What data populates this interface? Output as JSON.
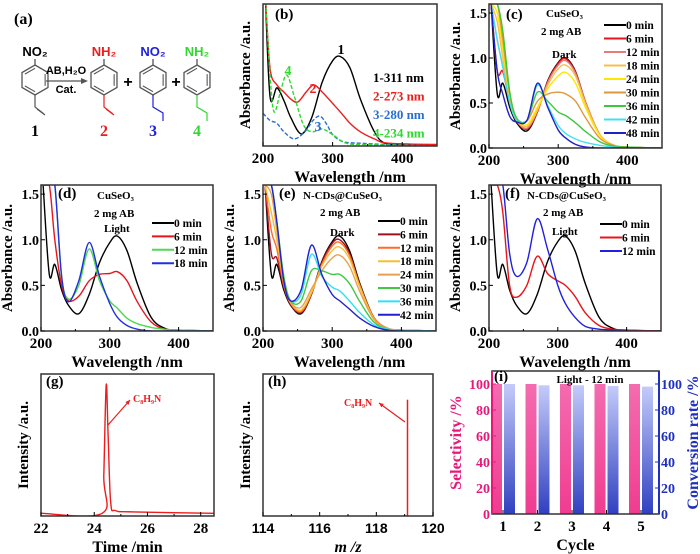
{
  "scheme": {
    "panel_label": "(a)",
    "reagent_top": "AB,H₂O",
    "reagent_bottom": "Cat.",
    "plus": "+",
    "compounds": [
      {
        "number": "1",
        "group": "NO₂",
        "tail": "vinyl",
        "color": "#000000"
      },
      {
        "number": "2",
        "group": "NH₂",
        "tail": "vinyl",
        "color": "#ee1c1c"
      },
      {
        "number": "3",
        "group": "NO₂",
        "tail": "ethyl",
        "color": "#2020e0"
      },
      {
        "number": "4",
        "group": "NH₂",
        "tail": "ethyl",
        "color": "#30d830"
      }
    ]
  },
  "chart_data": [
    {
      "panel_label": "(b)",
      "type": "line",
      "xlabel": "Wavelength /nm",
      "ylabel": "Absorbance /a.u.",
      "xlim": [
        200,
        450
      ],
      "ylim": [
        0,
        1
      ],
      "x_ticks": [
        200,
        300,
        400
      ],
      "y_ticks": [],
      "legend_placement": "right",
      "series": [
        {
          "name": "1-311 nm",
          "label": "1",
          "color": "#000000",
          "dashed": false,
          "x": [
            203,
            210,
            220,
            230,
            240,
            255,
            270,
            285,
            300,
            311,
            325,
            340,
            360,
            375,
            400,
            450
          ],
          "y": [
            1.1,
            0.35,
            0.41,
            0.32,
            0.2,
            0.085,
            0.2,
            0.45,
            0.6,
            0.63,
            0.55,
            0.33,
            0.1,
            0.02,
            0.01,
            0.01
          ]
        },
        {
          "name": "2-273 nm",
          "label": "2",
          "color": "#ee1c1c",
          "dashed": false,
          "x": [
            203,
            210,
            220,
            230,
            240,
            250,
            262,
            273,
            285,
            300,
            311,
            325,
            340,
            360,
            380,
            450
          ],
          "y": [
            1.1,
            0.55,
            0.43,
            0.38,
            0.33,
            0.31,
            0.38,
            0.43,
            0.38,
            0.3,
            0.24,
            0.16,
            0.1,
            0.05,
            0.02,
            0.01
          ]
        },
        {
          "name": "3-280 nm",
          "label": "3",
          "color": "#2a6fd0",
          "dashed": true,
          "x": [
            200,
            210,
            220,
            230,
            245,
            260,
            272,
            282,
            292,
            300,
            315,
            340,
            380,
            450
          ],
          "y": [
            0.23,
            0.18,
            0.16,
            0.1,
            0.05,
            0.1,
            0.18,
            0.21,
            0.15,
            0.08,
            0.03,
            0.02,
            0.01,
            0
          ]
        },
        {
          "name": "4-234 nm",
          "label": "4",
          "color": "#30d830",
          "dashed": true,
          "x": [
            203,
            210,
            216,
            225,
            234,
            245,
            258,
            270,
            285,
            300,
            320,
            350,
            450
          ],
          "y": [
            1.1,
            0.5,
            0.24,
            0.38,
            0.5,
            0.35,
            0.15,
            0.1,
            0.12,
            0.08,
            0.02,
            0.01,
            0
          ]
        }
      ]
    },
    {
      "panel_label": "(c)",
      "type": "line",
      "xlabel": "Wavelength /nm",
      "ylabel": "Absorbance /a.u.",
      "xlim": [
        200,
        450
      ],
      "ylim": [
        0,
        1.6
      ],
      "x_ticks": [
        200,
        300,
        400
      ],
      "y_ticks": [
        0.0,
        0.5,
        1.0,
        1.5
      ],
      "annotations": [
        "CuSeO₃",
        "2 mg AB",
        "Dark"
      ],
      "legend_placement": "right",
      "x": [
        203,
        212,
        220,
        230,
        240,
        255,
        270,
        285,
        300,
        311,
        325,
        340,
        360,
        380,
        400,
        450
      ],
      "series": [
        {
          "name": "0 min",
          "color": "#000000",
          "y": [
            1.6,
            0.6,
            0.72,
            0.45,
            0.28,
            0.19,
            0.4,
            0.75,
            0.95,
            1.0,
            0.85,
            0.5,
            0.15,
            0.03,
            0.01,
            0
          ]
        },
        {
          "name": "6 min",
          "color": "#e8141b",
          "y": [
            1.6,
            0.85,
            0.85,
            0.5,
            0.3,
            0.21,
            0.4,
            0.74,
            0.94,
            0.99,
            0.84,
            0.5,
            0.15,
            0.03,
            0.01,
            0
          ]
        },
        {
          "name": "12 min",
          "color": "#e87a7a",
          "y": [
            1.6,
            1.2,
            0.9,
            0.5,
            0.3,
            0.22,
            0.41,
            0.73,
            0.92,
            0.97,
            0.83,
            0.5,
            0.15,
            0.03,
            0.01,
            0
          ]
        },
        {
          "name": "18 min",
          "color": "#f5c04a",
          "y": [
            1.6,
            1.4,
            1.0,
            0.55,
            0.31,
            0.24,
            0.42,
            0.7,
            0.88,
            0.92,
            0.8,
            0.48,
            0.15,
            0.03,
            0.01,
            0
          ]
        },
        {
          "name": "24 min",
          "color": "#ffe600",
          "y": [
            1.6,
            1.5,
            1.1,
            0.58,
            0.32,
            0.26,
            0.45,
            0.66,
            0.8,
            0.84,
            0.72,
            0.44,
            0.14,
            0.03,
            0.01,
            0
          ]
        },
        {
          "name": "30 min",
          "color": "#e0963c",
          "y": [
            1.6,
            1.6,
            1.2,
            0.6,
            0.33,
            0.3,
            0.52,
            0.6,
            0.62,
            0.6,
            0.52,
            0.33,
            0.11,
            0.03,
            0.01,
            0
          ]
        },
        {
          "name": "36 min",
          "color": "#3cc83c",
          "y": [
            1.6,
            1.6,
            1.3,
            0.62,
            0.33,
            0.31,
            0.62,
            0.52,
            0.4,
            0.36,
            0.28,
            0.18,
            0.07,
            0.02,
            0.01,
            0
          ]
        },
        {
          "name": "42 min",
          "color": "#40e0f0",
          "y": [
            1.6,
            1.2,
            0.9,
            0.5,
            0.31,
            0.31,
            0.7,
            0.47,
            0.25,
            0.16,
            0.1,
            0.06,
            0.03,
            0.01,
            0,
            0
          ]
        },
        {
          "name": "48 min",
          "color": "#2020c8",
          "y": [
            1.6,
            0.85,
            0.6,
            0.35,
            0.29,
            0.31,
            0.72,
            0.45,
            0.2,
            0.11,
            0.04,
            0.01,
            0,
            0,
            0,
            0
          ]
        }
      ]
    },
    {
      "panel_label": "(d)",
      "type": "line",
      "xlabel": "Wavelength /nm",
      "ylabel": "Absorbance /a.u.",
      "xlim": [
        200,
        450
      ],
      "ylim": [
        0,
        1.6
      ],
      "x_ticks": [
        200,
        300,
        400
      ],
      "y_ticks": [
        0.0,
        0.5,
        1.0,
        1.5
      ],
      "annotations": [
        "CuSeO₃",
        "2 mg AB",
        "Light"
      ],
      "legend_placement": "right",
      "x": [
        203,
        212,
        220,
        230,
        240,
        255,
        270,
        285,
        300,
        311,
        325,
        340,
        360,
        380,
        400,
        450
      ],
      "series": [
        {
          "name": "0 min",
          "color": "#000000",
          "y": [
            1.6,
            0.62,
            0.73,
            0.45,
            0.28,
            0.19,
            0.4,
            0.75,
            0.97,
            1.04,
            0.88,
            0.52,
            0.15,
            0.03,
            0.01,
            0
          ]
        },
        {
          "name": "6 min",
          "color": "#e8141b",
          "y": [
            1.6,
            1.6,
            1.0,
            0.5,
            0.33,
            0.38,
            0.55,
            0.62,
            0.63,
            0.65,
            0.55,
            0.32,
            0.1,
            0.02,
            0.01,
            0
          ]
        },
        {
          "name": "12 min",
          "color": "#50d850",
          "y": [
            1.6,
            1.6,
            1.6,
            0.6,
            0.35,
            0.5,
            0.9,
            0.55,
            0.33,
            0.25,
            0.14,
            0.08,
            0.04,
            0.02,
            0.01,
            0
          ]
        },
        {
          "name": "18 min",
          "color": "#2030e0",
          "y": [
            1.6,
            1.6,
            1.6,
            0.6,
            0.32,
            0.55,
            0.97,
            0.6,
            0.3,
            0.15,
            0.06,
            0.02,
            0,
            0,
            0,
            0
          ]
        }
      ]
    },
    {
      "panel_label": "(e)",
      "type": "line",
      "xlabel": "Wavelength /nm",
      "ylabel": "Absorbance /a.u.",
      "xlim": [
        200,
        450
      ],
      "ylim": [
        0,
        1.6
      ],
      "x_ticks": [
        200,
        300,
        400
      ],
      "y_ticks": [
        0.0,
        0.5,
        1.0,
        1.5
      ],
      "annotations": [
        "N-CDs@CuSeO₃",
        "2 mg AB",
        "Dark"
      ],
      "legend_placement": "right",
      "x": [
        203,
        212,
        220,
        230,
        240,
        255,
        270,
        285,
        300,
        311,
        325,
        340,
        360,
        380,
        400,
        450
      ],
      "series": [
        {
          "name": "0 min",
          "color": "#000000",
          "y": [
            1.6,
            0.62,
            0.73,
            0.45,
            0.28,
            0.19,
            0.4,
            0.76,
            0.98,
            1.04,
            0.88,
            0.52,
            0.15,
            0.03,
            0.01,
            0
          ]
        },
        {
          "name": "6 min",
          "color": "#a01020",
          "y": [
            1.6,
            0.85,
            0.8,
            0.48,
            0.29,
            0.2,
            0.4,
            0.75,
            0.96,
            1.0,
            0.85,
            0.5,
            0.15,
            0.03,
            0.01,
            0
          ]
        },
        {
          "name": "12 min",
          "color": "#ff6a2a",
          "y": [
            1.6,
            1.1,
            0.9,
            0.5,
            0.3,
            0.21,
            0.41,
            0.73,
            0.93,
            0.97,
            0.83,
            0.5,
            0.15,
            0.03,
            0.01,
            0
          ]
        },
        {
          "name": "18 min",
          "color": "#f5c030",
          "y": [
            1.6,
            1.3,
            1.0,
            0.55,
            0.31,
            0.23,
            0.42,
            0.71,
            0.88,
            0.92,
            0.79,
            0.48,
            0.14,
            0.03,
            0.01,
            0
          ]
        },
        {
          "name": "24 min",
          "color": "#e8a050",
          "y": [
            1.6,
            1.5,
            1.1,
            0.58,
            0.32,
            0.26,
            0.46,
            0.66,
            0.8,
            0.83,
            0.71,
            0.43,
            0.13,
            0.03,
            0.01,
            0
          ]
        },
        {
          "name": "30 min",
          "color": "#40c840",
          "y": [
            1.6,
            1.6,
            1.2,
            0.6,
            0.33,
            0.33,
            0.66,
            0.66,
            0.62,
            0.62,
            0.52,
            0.32,
            0.1,
            0.02,
            0.01,
            0
          ]
        },
        {
          "name": "36 min",
          "color": "#30e0f0",
          "y": [
            1.6,
            1.6,
            1.2,
            0.55,
            0.33,
            0.4,
            0.84,
            0.6,
            0.48,
            0.44,
            0.33,
            0.2,
            0.07,
            0.02,
            0.01,
            0
          ]
        },
        {
          "name": "42 min",
          "color": "#2020d0",
          "y": [
            1.6,
            1.6,
            1.2,
            0.55,
            0.33,
            0.45,
            0.94,
            0.62,
            0.4,
            0.33,
            0.24,
            0.14,
            0.05,
            0.01,
            0,
            0
          ]
        }
      ]
    },
    {
      "panel_label": "(f)",
      "type": "line",
      "xlabel": "Wavelength /nm",
      "ylabel": "Absorbance /a.u.",
      "xlim": [
        200,
        450
      ],
      "ylim": [
        0,
        1.6
      ],
      "x_ticks": [
        200,
        300,
        400
      ],
      "y_ticks": [
        0.0,
        0.5,
        1.0,
        1.5
      ],
      "annotations": [
        "N-CDs@CuSeO₃",
        "2 mg AB",
        "Light"
      ],
      "legend_placement": "right",
      "x": [
        203,
        212,
        220,
        230,
        240,
        255,
        270,
        285,
        300,
        311,
        325,
        340,
        360,
        380,
        400,
        450
      ],
      "series": [
        {
          "name": "0 min",
          "color": "#000000",
          "y": [
            1.6,
            0.62,
            0.73,
            0.45,
            0.28,
            0.19,
            0.4,
            0.76,
            0.98,
            1.04,
            0.88,
            0.52,
            0.15,
            0.03,
            0.01,
            0
          ]
        },
        {
          "name": "6 min",
          "color": "#e8141b",
          "y": [
            1.6,
            1.6,
            1.3,
            0.5,
            0.37,
            0.5,
            0.82,
            0.63,
            0.55,
            0.5,
            0.38,
            0.2,
            0.06,
            0.02,
            0.01,
            0
          ]
        },
        {
          "name": "12 min",
          "color": "#2020e0",
          "y": [
            1.6,
            1.6,
            1.6,
            0.85,
            0.6,
            0.75,
            1.23,
            0.9,
            0.5,
            0.3,
            0.15,
            0.05,
            0.02,
            0.01,
            0,
            0
          ]
        }
      ]
    },
    {
      "panel_label": "(g)",
      "type": "line",
      "xlabel": "Time /min",
      "ylabel": "Intensity /a.u.",
      "xlim": [
        22,
        28.5
      ],
      "ylim": [
        0,
        1.05
      ],
      "x_ticks": [
        22,
        24,
        26,
        28
      ],
      "y_ticks": [],
      "annotations": [
        "C₈H₉N"
      ],
      "series": [
        {
          "color": "#ee1c1c",
          "x": [
            22,
            24.3,
            24.36,
            24.45,
            24.52,
            24.62,
            24.8,
            25.5,
            28.5
          ],
          "y": [
            0.02,
            0.02,
            0.3,
            0.97,
            0.6,
            0.1,
            0.04,
            0.03,
            0.02
          ]
        }
      ]
    },
    {
      "panel_label": "(h)",
      "type": "bar",
      "xlabel": "m /z",
      "ylabel": "Intensity /a.u.",
      "xlim": [
        114,
        120
      ],
      "ylim": [
        0,
        1.05
      ],
      "x_ticks": [
        114,
        116,
        118,
        120
      ],
      "y_ticks": [],
      "annotations": [
        "C₈H₉N"
      ],
      "series": [
        {
          "color": "#ee1c1c",
          "x": [
            119.1
          ],
          "y": [
            0.86
          ]
        }
      ]
    },
    {
      "panel_label": "(i)",
      "type": "bar",
      "xlabel": "Cycle",
      "ylabel": "Selectivity /%",
      "ylabel_right": "Conversion rate /%",
      "categories": [
        "1",
        "2",
        "3",
        "4",
        "5"
      ],
      "ylim": [
        0,
        110
      ],
      "y_ticks": [
        0,
        20,
        40,
        60,
        80,
        100
      ],
      "annotations": [
        "Light - 12 min"
      ],
      "series": [
        {
          "name": "Selectivity",
          "color": "#f0509a",
          "axis": "left",
          "values": [
            100,
            100,
            100,
            100,
            100
          ]
        },
        {
          "name": "Conversion rate",
          "color": "#3a48c8",
          "axis": "right",
          "values": [
            100,
            99,
            99,
            98.5,
            98
          ]
        }
      ]
    }
  ]
}
